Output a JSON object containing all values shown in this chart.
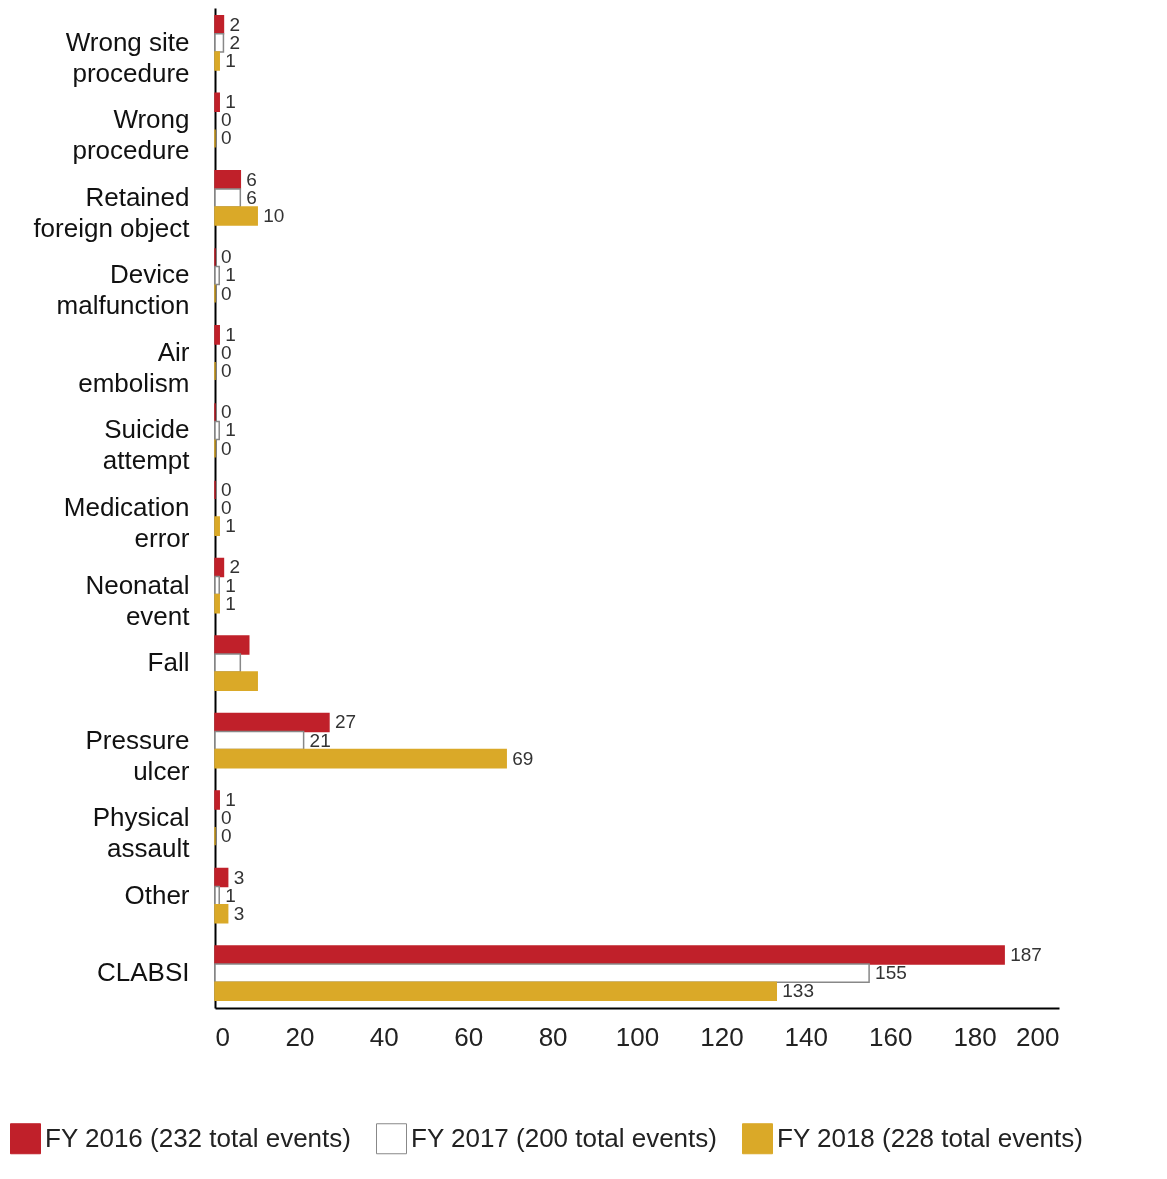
{
  "chart_data": {
    "type": "bar",
    "orientation": "horizontal",
    "categories": [
      "Wrong site\nprocedure",
      "Wrong\nprocedure",
      "Retained\nforeign object",
      "Device\nmalfunction",
      "Air\nembolism",
      "Suicide\nattempt",
      "Medication\nerror",
      "Neonatal\nevent",
      "Fall",
      "Pressure\nulcer",
      "Physical\nassault",
      "Other",
      "CLABSI"
    ],
    "series": [
      {
        "name": "FY 2016 (232 total events)",
        "color": "#c0202a",
        "values": [
          2,
          1,
          6,
          0,
          1,
          0,
          0,
          2,
          8,
          27,
          1,
          3,
          187
        ],
        "value_labels": [
          "2",
          "1",
          "6",
          "0",
          "1",
          "0",
          "0",
          "2",
          null,
          "27",
          "1",
          "3",
          "187"
        ]
      },
      {
        "name": "FY 2017 (200 total events)",
        "color": "#ffffff",
        "values": [
          2,
          0,
          6,
          1,
          0,
          1,
          0,
          1,
          6,
          21,
          0,
          1,
          155
        ],
        "value_labels": [
          "2",
          "0",
          "6",
          "1",
          "0",
          "1",
          "0",
          "1",
          null,
          "21",
          "0",
          "1",
          "155"
        ]
      },
      {
        "name": "FY 2018 (228 total events)",
        "color": "#daa928",
        "values": [
          1,
          0,
          10,
          0,
          0,
          0,
          1,
          1,
          10,
          69,
          0,
          3,
          133
        ],
        "value_labels": [
          "1",
          "0",
          "10",
          "0",
          "0",
          "0",
          "1",
          "1",
          null,
          "69",
          "0",
          "3",
          "133"
        ]
      }
    ],
    "xlim": [
      0,
      200
    ],
    "xticks": [
      0,
      20,
      40,
      60,
      80,
      100,
      120,
      140,
      160,
      180,
      200
    ],
    "grid": false,
    "legend": "bottom"
  }
}
